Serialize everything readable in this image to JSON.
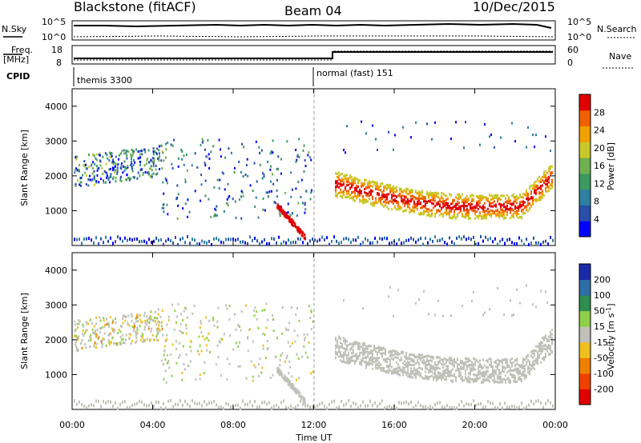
{
  "header": {
    "station": "Blackstone (fitACF)",
    "beam": "Beam 04",
    "date": "10/Dec/2015"
  },
  "top_panels": {
    "nsky_label": "N.Sky",
    "nsearch_label": "N.Search",
    "nsky_ticks": [
      "10^5",
      "10^0"
    ],
    "nsearch_ticks": [
      "10^5",
      "10^0"
    ],
    "freq_label_line1": "Freq.",
    "freq_label_line2": "[MHz]",
    "freq_ticks": [
      "18",
      "8"
    ],
    "nave_label": "Nave",
    "nave_ticks": [
      "60",
      "0"
    ],
    "cpid_label": "CPID",
    "cpid_mode1": "themis 3300",
    "cpid_mode2": "normal (fast) 151"
  },
  "chart_data": [
    {
      "type": "heatmap",
      "ylabel": "Slant Range [km]",
      "xlabel": "Time UT",
      "x_ticks": [
        "00:00",
        "04:00",
        "08:00",
        "12:00",
        "16:00",
        "20:00",
        "00:00"
      ],
      "y_ticks": [
        "1000",
        "2000",
        "3000",
        "4000"
      ],
      "colorbar_label": "Power [dB]",
      "colorbar_ticks": [
        "4",
        "8",
        "12",
        "16",
        "20",
        "24",
        "28"
      ],
      "colorbar_colors": [
        "#0000ff",
        "#2a4fa8",
        "#2e7fa0",
        "#3c9a60",
        "#70b050",
        "#c8c82a",
        "#f0a000",
        "#f06000",
        "#e00000"
      ]
    },
    {
      "type": "heatmap",
      "ylabel": "Slant Range [km]",
      "xlabel": "Time UT",
      "x_ticks": [
        "00:00",
        "04:00",
        "08:00",
        "12:00",
        "16:00",
        "20:00",
        "00:00"
      ],
      "y_ticks": [
        "1000",
        "2000",
        "3000",
        "4000"
      ],
      "colorbar_label": "Velocity [m s",
      "colorbar_unit_sup": "-1",
      "colorbar_ticks": [
        "200",
        "100",
        "50",
        "15",
        "-15",
        "-50",
        "-100",
        "-200"
      ],
      "colorbar_colors": [
        "#1a2aa8",
        "#2e6fa8",
        "#2e8e50",
        "#8ed04a",
        "#c0c0b8",
        "#f0c020",
        "#f08000",
        "#f04000",
        "#e00000"
      ]
    }
  ],
  "xaxis_title": "Time UT"
}
